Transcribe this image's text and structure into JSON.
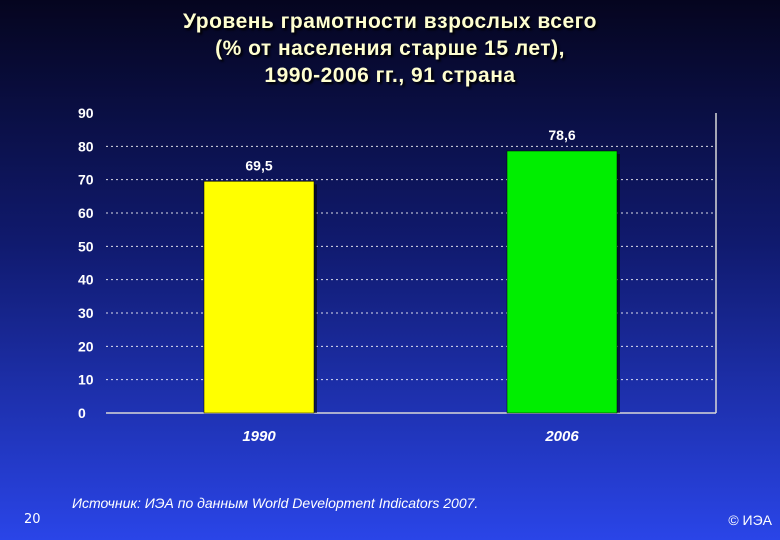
{
  "slide": {
    "title_lines": [
      "Уровень грамотности взрослых всего",
      "(% от населения старше 15 лет),",
      "1990-2006 гг., 91 страна"
    ],
    "source": "Источник: ИЭА по данным World Development Indicators 2007.",
    "page_number": "20",
    "copyright": "© ИЭА"
  },
  "colors": {
    "bar_1990": "#ffff00",
    "bar_2006": "#00ee00",
    "axis_text": "#ffffff",
    "data_label": "#ffffff"
  },
  "chart_data": {
    "type": "bar",
    "categories": [
      "1990",
      "2006"
    ],
    "values": [
      69.5,
      78.6
    ],
    "value_labels": [
      "69,5",
      "78,6"
    ],
    "ylim": [
      0,
      90
    ],
    "y_ticks": [
      "0",
      "10",
      "20",
      "30",
      "40",
      "50",
      "60",
      "70",
      "80",
      "90"
    ],
    "grid": true,
    "xlabel": "",
    "ylabel": ""
  }
}
